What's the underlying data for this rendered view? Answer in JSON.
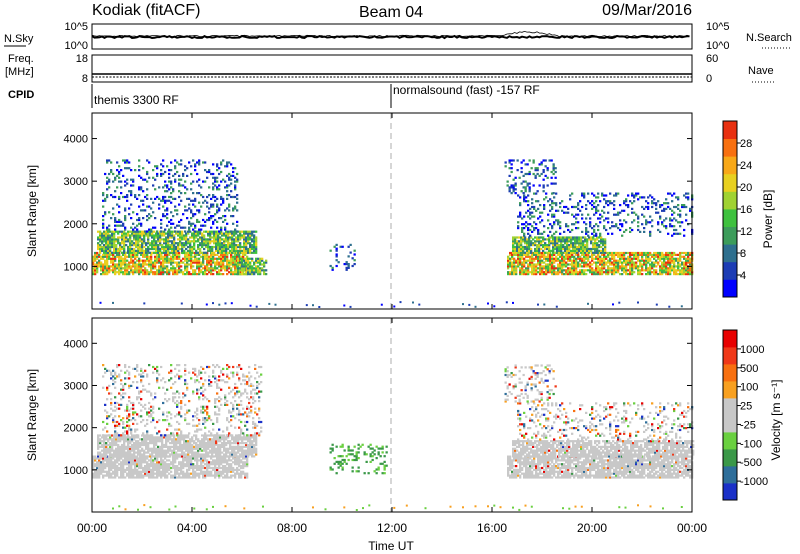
{
  "header": {
    "radar": "Kodiak (fitACF)",
    "beam": "Beam 04",
    "date": "09/Mar/2016"
  },
  "strip_top": {
    "left_label": "N.Sky",
    "left_ticks": [
      "10^5",
      "10^0"
    ],
    "right_label": "N.Search",
    "right_ticks": [
      "10^5",
      "10^0"
    ],
    "right_line_style": "dotted"
  },
  "strip_freq": {
    "label_line1": "Freq.",
    "label_line2": "[MHz]",
    "left_ticks": [
      "18",
      "8"
    ],
    "right_label": "Nave",
    "right_ticks": [
      "60",
      "0"
    ],
    "right_line_style": "dotted"
  },
  "cpid": {
    "label": "CPID",
    "segments": [
      {
        "start_hour": 0,
        "text": "themis 3300 RF"
      },
      {
        "start_hour": 12,
        "text": "normalsound (fast) -157 RF"
      }
    ]
  },
  "x_axis": {
    "label": "Time UT",
    "range_hours": [
      0,
      24
    ],
    "ticks": [
      "00:00",
      "04:00",
      "08:00",
      "12:00",
      "16:00",
      "20:00",
      "00:00"
    ],
    "tick_hours": [
      0,
      4,
      8,
      12,
      16,
      20,
      24
    ]
  },
  "chart_data": [
    {
      "type": "heatmap",
      "name": "power",
      "ylabel": "Slant Range [km]",
      "ylim": [
        0,
        4600
      ],
      "yticks": [
        1000,
        2000,
        3000,
        4000
      ],
      "colorbar": {
        "label": "Power [dB]",
        "ticks": [
          "4",
          "8",
          "12",
          "16",
          "20",
          "24",
          "28"
        ],
        "colors": [
          "#0000ff",
          "#1c3cb4",
          "#2e6f8e",
          "#3c9c5a",
          "#3ec13e",
          "#a0d232",
          "#e8d020",
          "#f8a818",
          "#f87010",
          "#e83010"
        ]
      },
      "regions": [
        {
          "t0": 0.0,
          "t1": 6.2,
          "r0": 800,
          "r1": 1300,
          "band": "high"
        },
        {
          "t0": 0.2,
          "t1": 6.6,
          "r0": 1300,
          "r1": 1800,
          "band": "mid"
        },
        {
          "t0": 0.4,
          "t1": 5.8,
          "r0": 1800,
          "r1": 3500,
          "band": "low",
          "sparse": true
        },
        {
          "t0": 5.8,
          "t1": 7.0,
          "r0": 800,
          "r1": 1200,
          "band": "mid"
        },
        {
          "t0": 16.6,
          "t1": 24.0,
          "r0": 800,
          "r1": 1300,
          "band": "high"
        },
        {
          "t0": 16.8,
          "t1": 20.5,
          "r0": 1300,
          "r1": 1700,
          "band": "mid"
        },
        {
          "t0": 17.0,
          "t1": 24.0,
          "r0": 1700,
          "r1": 2700,
          "band": "low",
          "sparse": true
        },
        {
          "t0": 16.5,
          "t1": 18.5,
          "r0": 2700,
          "r1": 3500,
          "band": "low",
          "sparse": true
        },
        {
          "t0": 9.5,
          "t1": 10.5,
          "r0": 900,
          "r1": 1500,
          "band": "low",
          "sparse": true
        }
      ]
    },
    {
      "type": "heatmap",
      "name": "velocity",
      "ylabel": "Slant Range [km]",
      "ylim": [
        0,
        4600
      ],
      "yticks": [
        1000,
        2000,
        3000,
        4000
      ],
      "colorbar": {
        "label": "Velocity [m s⁻¹]",
        "ticks": [
          "1000",
          "500",
          "100",
          "25",
          "-25",
          "-100",
          "-500",
          "-1000"
        ],
        "colors": [
          "#1a30c8",
          "#2e6e9a",
          "#3a9848",
          "#6ad040",
          "#c8c8c8",
          "#c8c8c8",
          "#f8a020",
          "#f87010",
          "#f03818",
          "#e80000"
        ]
      },
      "regions": [
        {
          "t0": 0.0,
          "t1": 6.2,
          "r0": 800,
          "r1": 1300,
          "band": "ground"
        },
        {
          "t0": 0.2,
          "t1": 6.6,
          "r0": 1300,
          "r1": 1800,
          "band": "ground"
        },
        {
          "t0": 0.4,
          "t1": 6.8,
          "r0": 1800,
          "r1": 3500,
          "band": "mixed",
          "sparse": true
        },
        {
          "t0": 16.6,
          "t1": 24.0,
          "r0": 800,
          "r1": 1300,
          "band": "ground"
        },
        {
          "t0": 16.8,
          "t1": 24.0,
          "r0": 1300,
          "r1": 1700,
          "band": "ground"
        },
        {
          "t0": 17.0,
          "t1": 24.0,
          "r0": 1700,
          "r1": 2600,
          "band": "mixed",
          "sparse": true
        },
        {
          "t0": 16.5,
          "t1": 18.5,
          "r0": 2600,
          "r1": 3500,
          "band": "mixed",
          "sparse": true
        },
        {
          "t0": 9.5,
          "t1": 11.8,
          "r0": 900,
          "r1": 1600,
          "band": "green",
          "sparse": true
        }
      ]
    }
  ]
}
